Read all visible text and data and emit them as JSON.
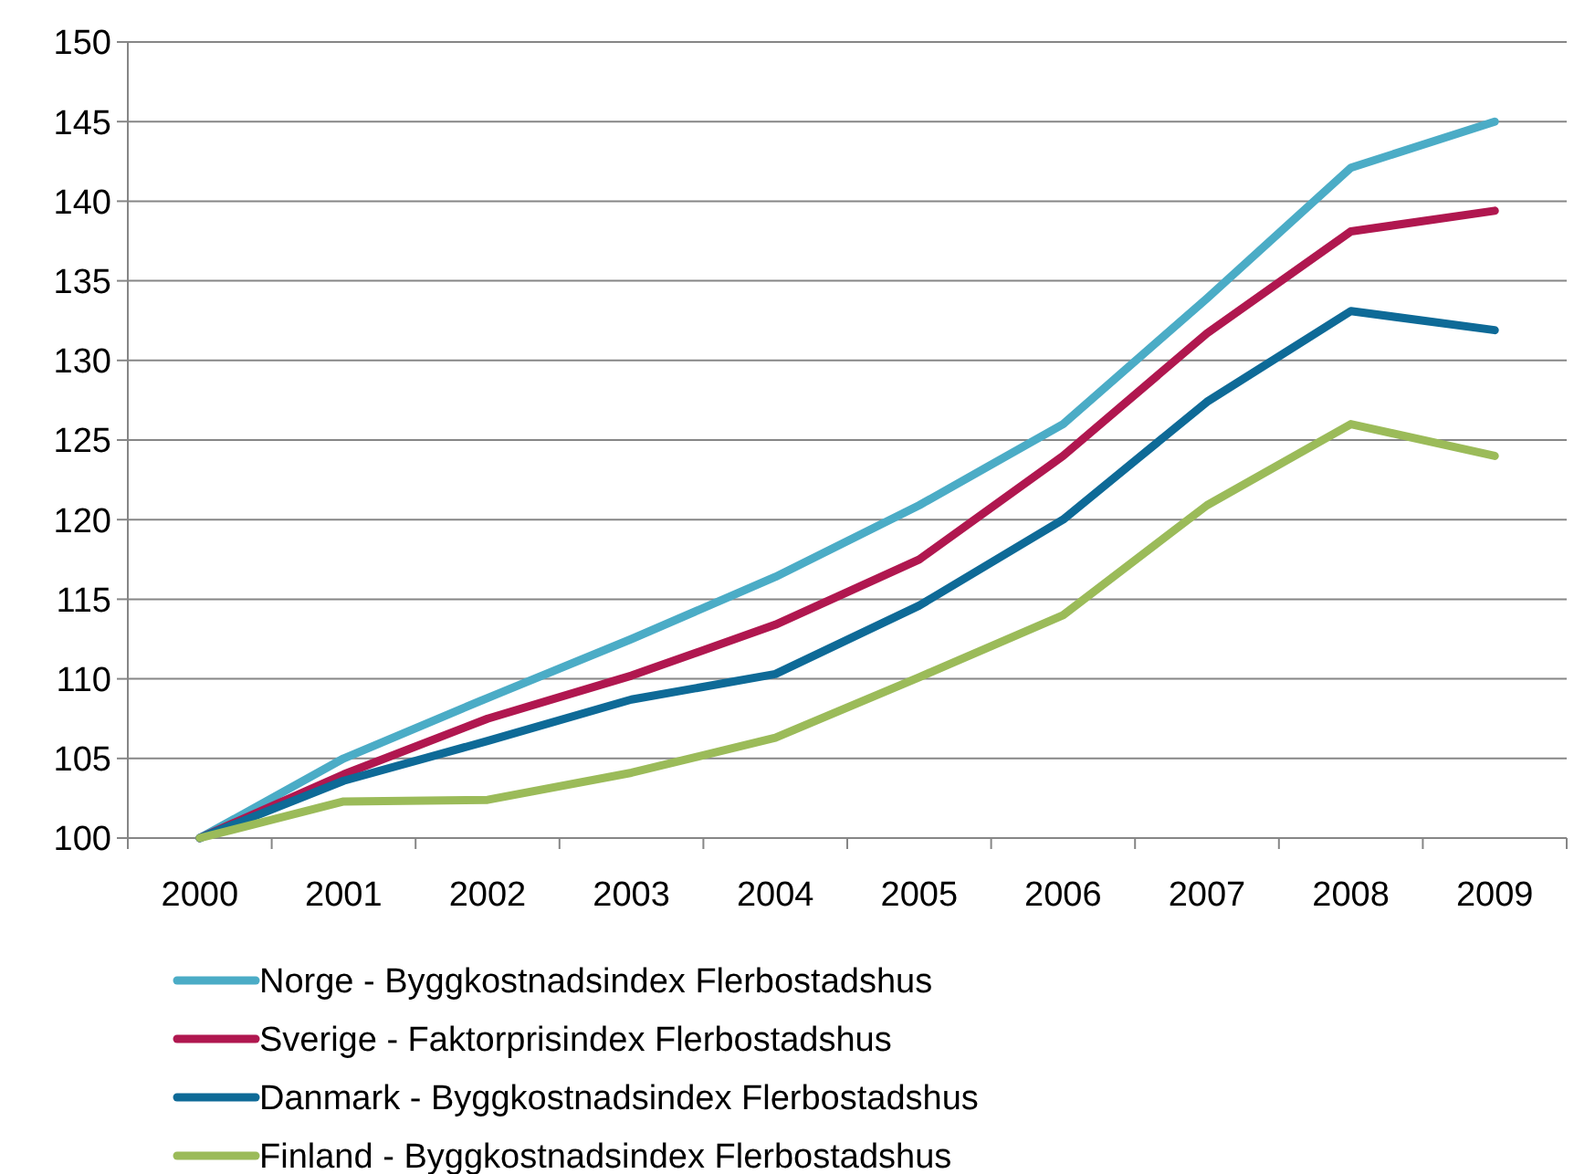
{
  "chart_data": {
    "type": "line",
    "categories": [
      "2000",
      "2001",
      "2002",
      "2003",
      "2004",
      "2005",
      "2006",
      "2007",
      "2008",
      "2009"
    ],
    "series": [
      {
        "name": "Norge - Byggkostnadsindex Flerbostadshus",
        "color": "#4bacc6",
        "values": [
          100,
          105.0,
          108.8,
          112.5,
          116.4,
          120.9,
          126.0,
          133.9,
          142.1,
          145.0
        ]
      },
      {
        "name": "Sverige - Faktorprisindex Flerbostadshus",
        "color": "#b0174f",
        "values": [
          100,
          104.0,
          107.5,
          110.2,
          113.4,
          117.5,
          124.0,
          131.7,
          138.1,
          139.4
        ]
      },
      {
        "name": "Danmark - Byggkostnadsindex Flerbostadshus",
        "color": "#0e6a97",
        "values": [
          100,
          103.6,
          106.1,
          108.7,
          110.3,
          114.6,
          120.0,
          127.4,
          133.1,
          131.9
        ]
      },
      {
        "name": "Finland - Byggkostnadsindex Flerbostadshus",
        "color": "#9bbb59",
        "values": [
          100,
          102.3,
          102.4,
          104.1,
          106.3,
          110.1,
          114.0,
          120.9,
          126.0,
          124.0
        ]
      }
    ],
    "ylim": [
      100,
      150
    ],
    "yticks": [
      100,
      105,
      110,
      115,
      120,
      125,
      130,
      135,
      140,
      145,
      150
    ],
    "grid": "y",
    "legend": "bottom",
    "marker": "none",
    "line_style": "solid"
  }
}
